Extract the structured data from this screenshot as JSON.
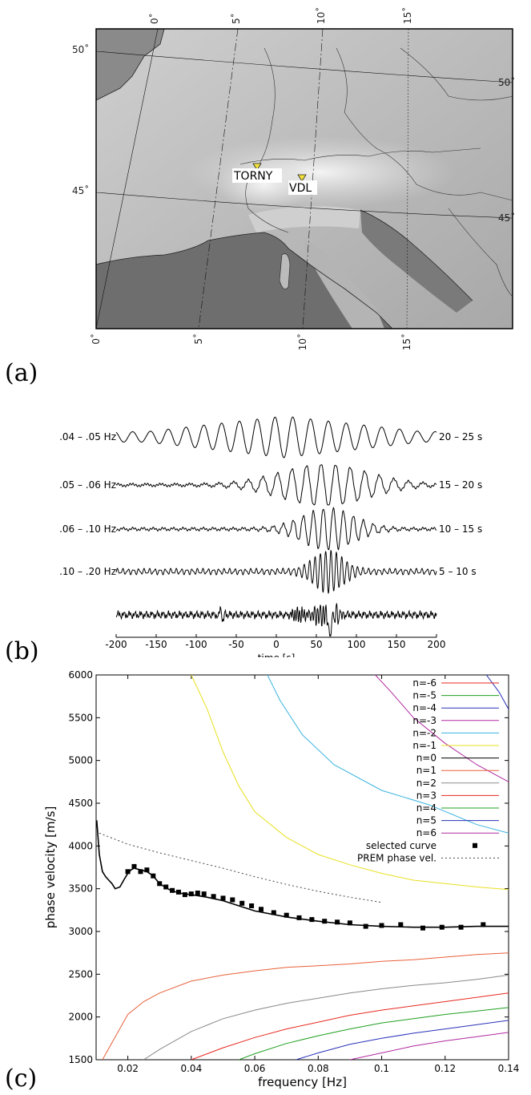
{
  "panels": {
    "a": "(a)",
    "b": "(b)",
    "c": "(c)"
  },
  "map": {
    "top_ticks": [
      "0˚",
      "5˚",
      "10˚",
      "15˚"
    ],
    "bottom_ticks": [
      "0˚",
      "5˚",
      "10˚",
      "15˚"
    ],
    "left_ticks": [
      "50˚",
      "45˚"
    ],
    "right_ticks": [
      "50˚",
      "45˚"
    ],
    "stations": [
      {
        "name": "TORNY",
        "color": "#f2e13a"
      },
      {
        "name": "VDL",
        "color": "#f2e13a"
      }
    ]
  },
  "waveforms": {
    "traces": [
      {
        "left_label": ".04 – .05 Hz",
        "right_label": "20 – 25 s"
      },
      {
        "left_label": ".05 – .06 Hz",
        "right_label": "15 – 20 s"
      },
      {
        "left_label": ".06 – .10 Hz",
        "right_label": "10 – 15 s"
      },
      {
        "left_label": ".10 – .20 Hz",
        "right_label": "5 – 10 s"
      },
      {
        "left_label": "",
        "right_label": ""
      }
    ],
    "x_ticks": [
      "-200",
      "-150",
      "-100",
      "-50",
      "0",
      "50",
      "100",
      "150",
      "200"
    ],
    "xlabel": "time [s]"
  },
  "chart_data": {
    "type": "line",
    "xlabel": "frequency [Hz]",
    "ylabel": "phase velocity [m/s]",
    "xlim": [
      0.01,
      0.14
    ],
    "ylim": [
      1500,
      6000
    ],
    "x_ticks": [
      "0.02",
      "0.04",
      "0.06",
      "0.08",
      "0.1",
      "0.12",
      "0.14"
    ],
    "y_ticks": [
      "1500",
      "2000",
      "2500",
      "3000",
      "3500",
      "4000",
      "4500",
      "5000",
      "5500",
      "6000"
    ],
    "legend_position": "top-right",
    "series": [
      {
        "name": "n=-6",
        "color": "#e8281e",
        "x": [],
        "y": []
      },
      {
        "name": "n=-5",
        "color": "#20a020",
        "x": [],
        "y": []
      },
      {
        "name": "n=-4",
        "color": "#2a32b8",
        "x": [
          0.133,
          0.137,
          0.14
        ],
        "y": [
          6000,
          5800,
          5600
        ]
      },
      {
        "name": "n=-3",
        "color": "#b02aa0",
        "x": [
          0.098,
          0.103,
          0.11,
          0.12,
          0.13,
          0.14
        ],
        "y": [
          6000,
          5800,
          5500,
          5200,
          4950,
          4750
        ]
      },
      {
        "name": "n=-2",
        "color": "#3ab3e0",
        "x": [
          0.064,
          0.068,
          0.075,
          0.085,
          0.1,
          0.115,
          0.13,
          0.14
        ],
        "y": [
          6000,
          5700,
          5300,
          4950,
          4650,
          4480,
          4250,
          4150
        ]
      },
      {
        "name": "n=-1",
        "color": "#e8e020",
        "x": [
          0.04,
          0.045,
          0.05,
          0.055,
          0.06,
          0.07,
          0.08,
          0.09,
          0.1,
          0.11,
          0.12,
          0.13,
          0.14
        ],
        "y": [
          6000,
          5600,
          5100,
          4700,
          4400,
          4100,
          3900,
          3780,
          3680,
          3600,
          3560,
          3520,
          3490
        ]
      },
      {
        "name": "n=0",
        "color": "#000000",
        "x": [
          0.0102,
          0.011,
          0.012,
          0.013,
          0.014,
          0.015,
          0.016,
          0.0175,
          0.019,
          0.02,
          0.021,
          0.022,
          0.023,
          0.024,
          0.026,
          0.028,
          0.03,
          0.033,
          0.036,
          0.04,
          0.045,
          0.05,
          0.055,
          0.06,
          0.07,
          0.08,
          0.09,
          0.1,
          0.11,
          0.12,
          0.13,
          0.14
        ],
        "y": [
          4300,
          3900,
          3700,
          3640,
          3600,
          3560,
          3500,
          3520,
          3620,
          3680,
          3720,
          3740,
          3730,
          3720,
          3700,
          3650,
          3560,
          3490,
          3450,
          3430,
          3400,
          3360,
          3300,
          3240,
          3170,
          3120,
          3080,
          3060,
          3050,
          3050,
          3060,
          3060
        ]
      },
      {
        "name": "n=1",
        "color": "#e8603a",
        "x": [
          0.012,
          0.015,
          0.02,
          0.025,
          0.03,
          0.04,
          0.05,
          0.06,
          0.07,
          0.08,
          0.09,
          0.1,
          0.11,
          0.12,
          0.13,
          0.14
        ],
        "y": [
          1500,
          1700,
          2030,
          2180,
          2280,
          2420,
          2490,
          2540,
          2580,
          2600,
          2620,
          2650,
          2670,
          2700,
          2730,
          2750
        ]
      },
      {
        "name": "n=2",
        "color": "#888888",
        "x": [
          0.025,
          0.03,
          0.04,
          0.05,
          0.06,
          0.07,
          0.08,
          0.09,
          0.1,
          0.11,
          0.12,
          0.13,
          0.14
        ],
        "y": [
          1500,
          1620,
          1830,
          1980,
          2080,
          2160,
          2220,
          2280,
          2330,
          2370,
          2400,
          2440,
          2490
        ]
      },
      {
        "name": "n=3",
        "color": "#e8281e",
        "x": [
          0.04,
          0.05,
          0.06,
          0.07,
          0.08,
          0.09,
          0.1,
          0.11,
          0.12,
          0.13,
          0.14
        ],
        "y": [
          1500,
          1640,
          1760,
          1860,
          1940,
          2020,
          2080,
          2130,
          2180,
          2230,
          2280
        ]
      },
      {
        "name": "n=4",
        "color": "#20a020",
        "x": [
          0.055,
          0.06,
          0.07,
          0.08,
          0.09,
          0.1,
          0.11,
          0.12,
          0.13,
          0.14
        ],
        "y": [
          1500,
          1570,
          1690,
          1780,
          1860,
          1930,
          1980,
          2030,
          2070,
          2110
        ]
      },
      {
        "name": "n=5",
        "color": "#2a32b8",
        "x": [
          0.073,
          0.08,
          0.09,
          0.1,
          0.11,
          0.12,
          0.13,
          0.14
        ],
        "y": [
          1500,
          1580,
          1680,
          1750,
          1810,
          1860,
          1910,
          1960
        ]
      },
      {
        "name": "n=6",
        "color": "#b02aa0",
        "x": [
          0.09,
          0.1,
          0.11,
          0.12,
          0.13,
          0.14
        ],
        "y": [
          1500,
          1580,
          1660,
          1720,
          1770,
          1820
        ]
      },
      {
        "name": "selected curve",
        "color": "#000000",
        "marker": "square",
        "x": [
          0.02,
          0.022,
          0.024,
          0.026,
          0.028,
          0.03,
          0.032,
          0.034,
          0.036,
          0.038,
          0.04,
          0.042,
          0.044,
          0.047,
          0.05,
          0.053,
          0.056,
          0.059,
          0.062,
          0.066,
          0.07,
          0.074,
          0.078,
          0.082,
          0.086,
          0.09,
          0.095,
          0.1,
          0.106,
          0.113,
          0.119,
          0.125,
          0.132
        ],
        "y": [
          3700,
          3760,
          3700,
          3720,
          3650,
          3560,
          3520,
          3480,
          3460,
          3430,
          3440,
          3450,
          3440,
          3410,
          3390,
          3370,
          3330,
          3300,
          3260,
          3220,
          3190,
          3160,
          3140,
          3120,
          3110,
          3100,
          3060,
          3070,
          3080,
          3040,
          3050,
          3050,
          3080
        ]
      },
      {
        "name": "PREM phase vel.",
        "color": "#444444",
        "dash": true,
        "x": [
          0.011,
          0.02,
          0.03,
          0.04,
          0.05,
          0.06,
          0.07,
          0.08,
          0.09,
          0.1
        ],
        "y": [
          4150,
          4020,
          3920,
          3830,
          3740,
          3640,
          3550,
          3470,
          3400,
          3340
        ]
      }
    ]
  }
}
